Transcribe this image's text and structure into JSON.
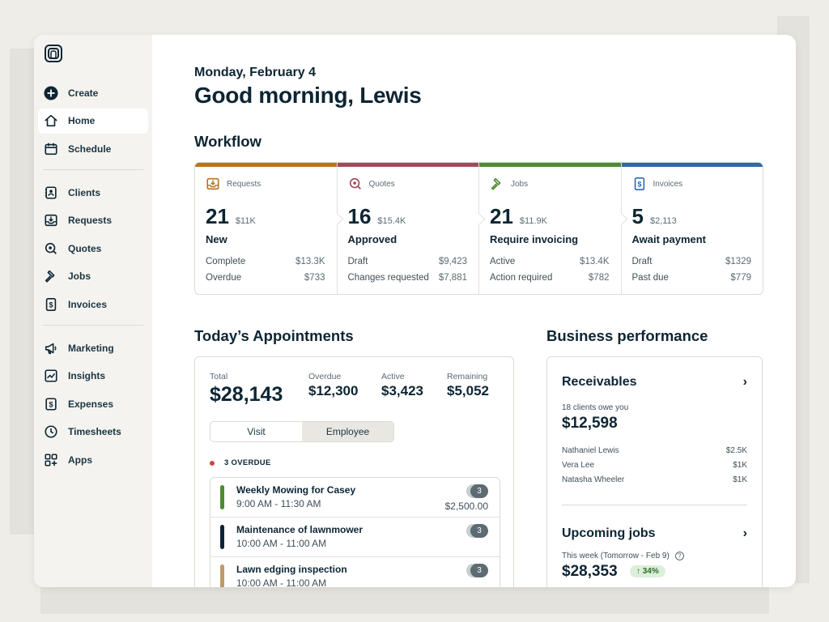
{
  "sidebar": {
    "items": [
      {
        "label": "Create",
        "icon": "plus-circle-icon"
      },
      {
        "label": "Home",
        "icon": "home-icon",
        "active": true
      },
      {
        "label": "Schedule",
        "icon": "calendar-icon"
      },
      {
        "label": "Clients",
        "icon": "contact-icon"
      },
      {
        "label": "Requests",
        "icon": "inbox-icon"
      },
      {
        "label": "Quotes",
        "icon": "quote-icon"
      },
      {
        "label": "Jobs",
        "icon": "hammer-icon"
      },
      {
        "label": "Invoices",
        "icon": "invoice-icon"
      },
      {
        "label": "Marketing",
        "icon": "megaphone-icon"
      },
      {
        "label": "Insights",
        "icon": "chart-icon"
      },
      {
        "label": "Expenses",
        "icon": "dollar-icon"
      },
      {
        "label": "Timesheets",
        "icon": "clock-icon"
      },
      {
        "label": "Apps",
        "icon": "apps-icon"
      }
    ]
  },
  "header": {
    "date": "Monday, February 4",
    "greeting": "Good morning, Lewis"
  },
  "workflow": {
    "title": "Workflow",
    "columns": [
      {
        "label": "Requests",
        "color": "#b8731f",
        "count": "21",
        "amount": "$11K",
        "status": "New",
        "rows": [
          {
            "label": "Complete",
            "value": "$13.3K"
          },
          {
            "label": "Overdue",
            "value": "$733"
          }
        ]
      },
      {
        "label": "Quotes",
        "color": "#a04a5c",
        "count": "16",
        "amount": "$15.4K",
        "status": "Approved",
        "rows": [
          {
            "label": "Draft",
            "value": "$9,423"
          },
          {
            "label": "Changes requested",
            "value": "$7,881"
          }
        ]
      },
      {
        "label": "Jobs",
        "color": "#4d8a33",
        "count": "21",
        "amount": "$11.9K",
        "status": "Require invoicing",
        "rows": [
          {
            "label": "Active",
            "value": "$13.4K"
          },
          {
            "label": "Action required",
            "value": "$782"
          }
        ]
      },
      {
        "label": "Invoices",
        "color": "#2f6aa3",
        "count": "5",
        "amount": "$2,113",
        "status": "Await payment",
        "rows": [
          {
            "label": "Draft",
            "value": "$1329"
          },
          {
            "label": "Past due",
            "value": "$779"
          }
        ]
      }
    ]
  },
  "appointments": {
    "title": "Today’s Appointments",
    "stats": [
      {
        "label": "Total",
        "value": "$28,143"
      },
      {
        "label": "Overdue",
        "value": "$12,300"
      },
      {
        "label": "Active",
        "value": "$3,423"
      },
      {
        "label": "Remaining",
        "value": "$5,052"
      }
    ],
    "toggle": {
      "visit": "Visit",
      "employee": "Employee"
    },
    "overdue_label": "3 OVERDUE",
    "items": [
      {
        "name": "Weekly Mowing for Casey",
        "time": "9:00 AM - 11:30 AM",
        "count": "3",
        "price": "$2,500.00",
        "color": "#4d8a33"
      },
      {
        "name": "Maintenance of lawnmower",
        "time": "10:00 AM - 11:00 AM",
        "count": "3",
        "price": "",
        "color": "#0d2533"
      },
      {
        "name": "Lawn edging inspection",
        "time": "10:00 AM - 11:00 AM",
        "count": "3",
        "price": "",
        "color": "#c09a6b"
      }
    ]
  },
  "business": {
    "title": "Business performance",
    "receivables": {
      "title": "Receivables",
      "subtitle": "18 clients owe you",
      "amount": "$12,598",
      "rows": [
        {
          "name": "Nathaniel Lewis",
          "value": "$2.5K"
        },
        {
          "name": "Vera Lee",
          "value": "$1K"
        },
        {
          "name": "Natasha Wheeler",
          "value": "$1K"
        }
      ]
    },
    "upcoming": {
      "title": "Upcoming jobs",
      "subtitle": "This week (Tomorrow - Feb 9)",
      "amount": "$28,353",
      "badge": "↑ 34%"
    }
  }
}
